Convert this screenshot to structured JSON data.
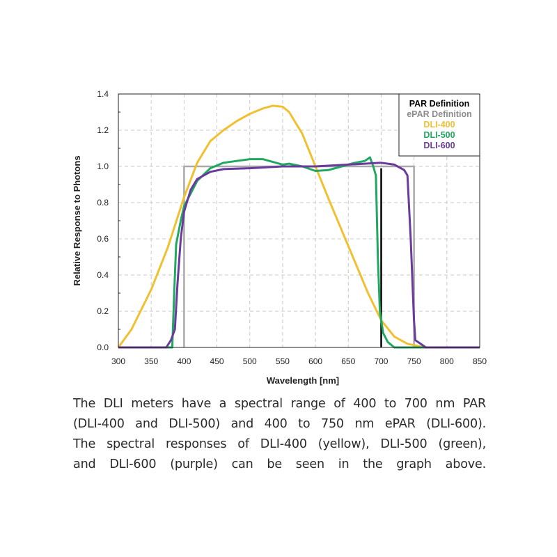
{
  "chart_data": {
    "type": "line",
    "xlabel": "Wavelength [nm]",
    "ylabel": "Relative Response to Photons",
    "xlim": [
      300,
      850
    ],
    "ylim": [
      0,
      1.4
    ],
    "xticks": [
      300,
      350,
      400,
      450,
      500,
      550,
      600,
      650,
      700,
      750,
      800,
      850
    ],
    "yticks": [
      "0.0",
      "0.2",
      "0.4",
      "0.6",
      "0.8",
      "1.0",
      "1.2",
      "1.4"
    ],
    "grid": true,
    "legend_placement": "top-right",
    "legend": [
      {
        "label": "PAR Definition",
        "color": "#000000"
      },
      {
        "label": "ePAR Definition",
        "color": "#8c8c8c"
      },
      {
        "label": "DLI-400",
        "color": "#f0c030"
      },
      {
        "label": "DLI-500",
        "color": "#1fa860"
      },
      {
        "label": "DLI-600",
        "color": "#6a3a9c"
      }
    ],
    "series": [
      {
        "name": "ePAR Definition",
        "color": "#aaaaaa",
        "points": [
          [
            400,
            0
          ],
          [
            400,
            1.0
          ],
          [
            750,
            1.0
          ],
          [
            750,
            0
          ]
        ]
      },
      {
        "name": "PAR Definition",
        "color": "#000000",
        "points": [
          [
            700,
            0
          ],
          [
            700,
            0.99
          ]
        ]
      },
      {
        "name": "DLI-400",
        "color": "#f0c030",
        "points": [
          [
            300,
            0
          ],
          [
            320,
            0.1
          ],
          [
            350,
            0.32
          ],
          [
            375,
            0.55
          ],
          [
            400,
            0.83
          ],
          [
            420,
            1.02
          ],
          [
            440,
            1.14
          ],
          [
            460,
            1.2
          ],
          [
            480,
            1.25
          ],
          [
            500,
            1.29
          ],
          [
            520,
            1.32
          ],
          [
            535,
            1.335
          ],
          [
            550,
            1.33
          ],
          [
            560,
            1.3
          ],
          [
            580,
            1.18
          ],
          [
            600,
            1.0
          ],
          [
            620,
            0.82
          ],
          [
            650,
            0.56
          ],
          [
            680,
            0.3
          ],
          [
            700,
            0.15
          ],
          [
            720,
            0.06
          ],
          [
            740,
            0.02
          ],
          [
            760,
            0.005
          ],
          [
            770,
            0
          ]
        ]
      },
      {
        "name": "DLI-500",
        "color": "#1fa860",
        "points": [
          [
            300,
            0
          ],
          [
            382,
            0
          ],
          [
            385,
            0.3
          ],
          [
            388,
            0.57
          ],
          [
            395,
            0.7
          ],
          [
            400,
            0.78
          ],
          [
            410,
            0.85
          ],
          [
            420,
            0.92
          ],
          [
            440,
            0.99
          ],
          [
            460,
            1.02
          ],
          [
            480,
            1.03
          ],
          [
            500,
            1.04
          ],
          [
            520,
            1.04
          ],
          [
            540,
            1.02
          ],
          [
            550,
            1.01
          ],
          [
            560,
            1.015
          ],
          [
            580,
            1.0
          ],
          [
            600,
            0.975
          ],
          [
            620,
            0.98
          ],
          [
            640,
            1.0
          ],
          [
            660,
            1.02
          ],
          [
            675,
            1.03
          ],
          [
            683,
            1.05
          ],
          [
            688,
            1.0
          ],
          [
            692,
            0.95
          ],
          [
            695,
            0.5
          ],
          [
            698,
            0.2
          ],
          [
            703,
            0.08
          ],
          [
            710,
            0.03
          ],
          [
            720,
            0
          ],
          [
            850,
            0
          ]
        ]
      },
      {
        "name": "DLI-600",
        "color": "#6a3a9c",
        "points": [
          [
            300,
            0
          ],
          [
            373,
            0
          ],
          [
            380,
            0.04
          ],
          [
            386,
            0.1
          ],
          [
            390,
            0.35
          ],
          [
            395,
            0.6
          ],
          [
            400,
            0.75
          ],
          [
            410,
            0.87
          ],
          [
            420,
            0.93
          ],
          [
            440,
            0.97
          ],
          [
            460,
            0.985
          ],
          [
            500,
            0.99
          ],
          [
            550,
            1.0
          ],
          [
            600,
            1.0
          ],
          [
            650,
            1.01
          ],
          [
            700,
            1.02
          ],
          [
            720,
            1.01
          ],
          [
            735,
            0.98
          ],
          [
            740,
            0.95
          ],
          [
            745,
            0.6
          ],
          [
            750,
            0.15
          ],
          [
            752,
            0.04
          ],
          [
            760,
            0.02
          ],
          [
            768,
            0
          ],
          [
            850,
            0
          ]
        ]
      }
    ]
  },
  "caption": {
    "lines": [
      "The DLI meters have a spectral range of 400 to 700 nm PAR",
      "(DLI-400 and DLI-500) and 400 to 750 nm ePAR (DLI-600).",
      "The spectral responses of DLI-400 (yellow), DLI-500 (green),",
      "and DLI-600 (purple) can be seen in the graph above."
    ]
  }
}
